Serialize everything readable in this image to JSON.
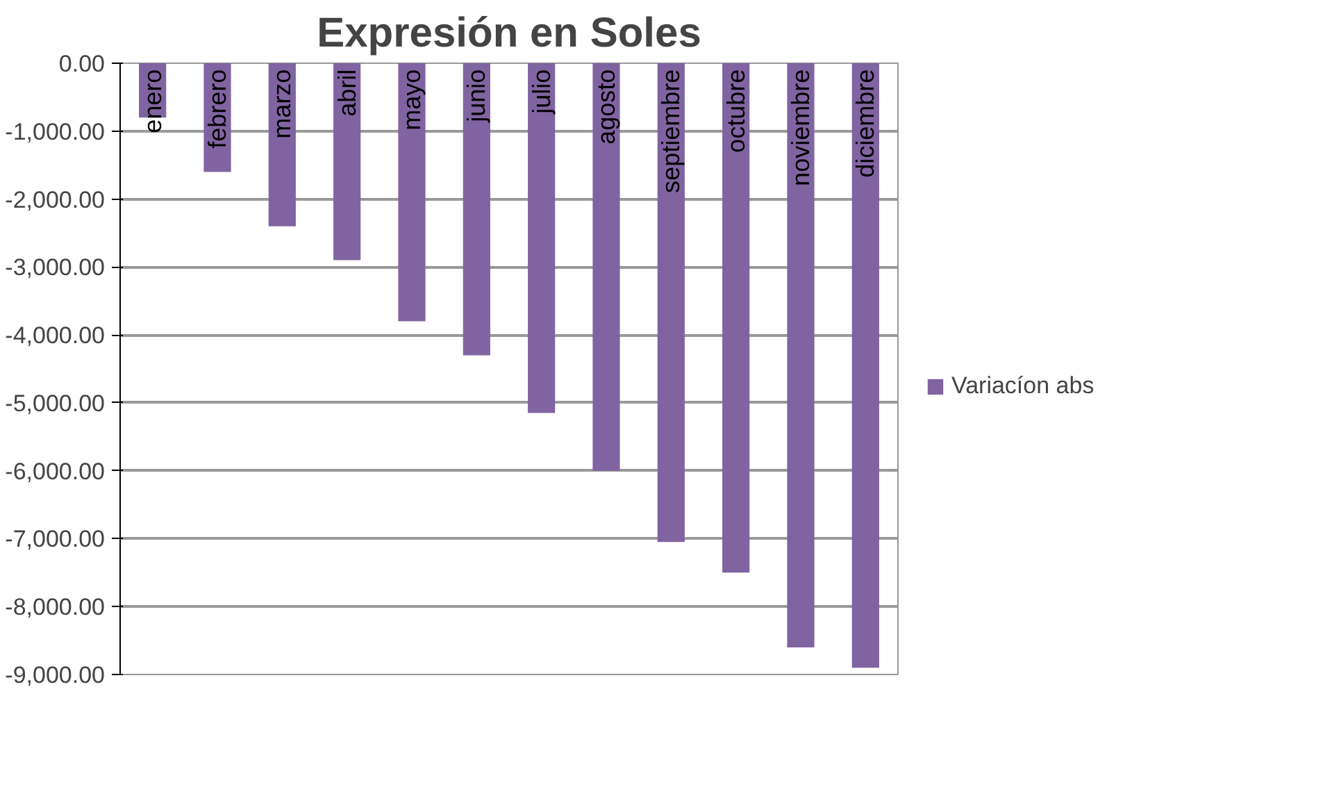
{
  "chart_data": {
    "type": "bar",
    "title": "Expresión en Soles",
    "categories": [
      "enero",
      "febrero",
      "marzo",
      "abril",
      "mayo",
      "junio",
      "julio",
      "agosto",
      "septiembre",
      "octubre",
      "noviembre",
      "diciembre"
    ],
    "series": [
      {
        "name": "Variacíon abs",
        "color": "#8064a2",
        "values": [
          -800,
          -1600,
          -2400,
          -2900,
          -3800,
          -4300,
          -5150,
          -6000,
          -7050,
          -7500,
          -8600,
          -8900
        ]
      }
    ],
    "ylim": [
      -9000,
      0
    ],
    "yticks": [
      {
        "value": 0,
        "label": "0.00"
      },
      {
        "value": -1000,
        "label": "-1,000.00"
      },
      {
        "value": -2000,
        "label": "-2,000.00"
      },
      {
        "value": -3000,
        "label": "-3,000.00"
      },
      {
        "value": -4000,
        "label": "-4,000.00"
      },
      {
        "value": -5000,
        "label": "-5,000.00"
      },
      {
        "value": -6000,
        "label": "-6,000.00"
      },
      {
        "value": -7000,
        "label": "-7,000.00"
      },
      {
        "value": -8000,
        "label": "-8,000.00"
      },
      {
        "value": -9000,
        "label": "-9,000.00"
      }
    ],
    "grid": "y",
    "legend": "right"
  }
}
